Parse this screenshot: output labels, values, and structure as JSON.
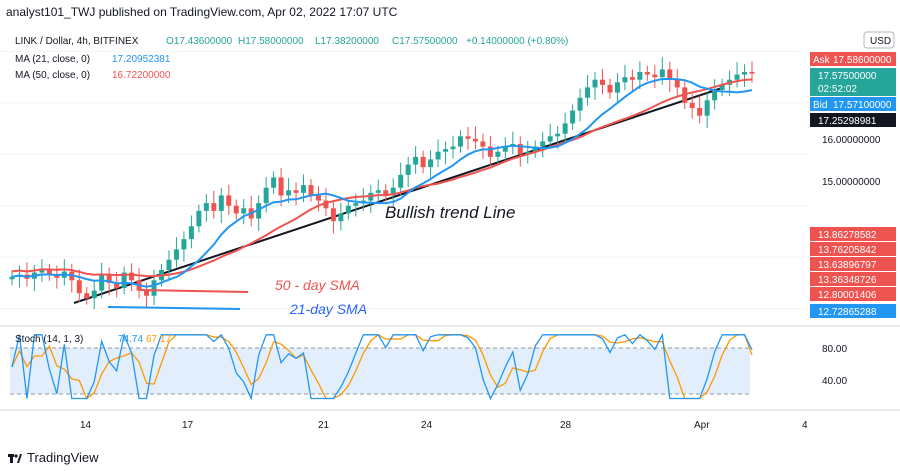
{
  "header": {
    "text": "analyst101_TWJ published on TradingView.com, Apr 02, 2022 17:07 UTC"
  },
  "footer": {
    "brand": "TradingView"
  },
  "legend": {
    "symbol": "LINK / Dollar, 4h, BITFINEX",
    "open": "O17.43600000",
    "high": "H17.58000000",
    "low": "L17.38200000",
    "close": "C17.57500000",
    "change": "+0.14000000 (+0.80%)",
    "ma21_label": "MA (21, close, 0)",
    "ma21_value": "17.20952381",
    "ma50_label": "MA (50, close, 0)",
    "ma50_value": "16.72200000"
  },
  "currency": "USD",
  "price_axis": {
    "ticks": [
      "16.00000000",
      "15.00000000"
    ],
    "ask_label": "Ask",
    "ask_value": "17.58600000",
    "last_value": "17.57500000",
    "countdown": "02:52:02",
    "bid_label": "Bid",
    "bid_value": "17.57100000",
    "ma21_tag": "17.25298981",
    "red_labels": [
      "13.86278582",
      "13.76205842",
      "13.63896797",
      "13.36348726",
      "12.80001406"
    ],
    "blue_label": "12.72865288"
  },
  "annotations": {
    "trend": "Bullish trend Line",
    "sma50": "50 - day SMA",
    "sma21": "21-day SMA"
  },
  "stoch": {
    "label": "Stoch (14, 1, 3)",
    "k_value": "74.74",
    "d_value": "67.17",
    "ticks": [
      "80.00",
      "40.00"
    ]
  },
  "x_axis": {
    "ticks": [
      "14",
      "17",
      "21",
      "24",
      "28",
      "Apr",
      "4"
    ]
  },
  "colors": {
    "up": "#26a69a",
    "down": "#ef5350",
    "ma21": "#2196f3",
    "ma50": "#ef5350",
    "trend": "#131722",
    "stoch_k": "#2196f3",
    "stoch_d": "#ff9800",
    "ask": "#ef5350",
    "bid": "#2196f3",
    "ma21_tag": "#131722",
    "band": "#e3eefc"
  },
  "chart_data": {
    "type": "line",
    "title": "LINK / Dollar, 4h, BITFINEX",
    "ylim": [
      12.7,
      18.3
    ],
    "price_close": [
      13.62,
      13.66,
      13.58,
      13.7,
      13.75,
      13.66,
      13.6,
      13.72,
      13.55,
      13.3,
      13.2,
      13.35,
      13.65,
      13.5,
      13.4,
      13.7,
      13.55,
      13.35,
      13.25,
      13.55,
      13.75,
      13.95,
      14.15,
      14.35,
      14.6,
      14.9,
      15.05,
      14.9,
      15.2,
      15.0,
      14.85,
      14.95,
      14.75,
      15.05,
      15.35,
      15.55,
      15.2,
      15.3,
      15.25,
      15.4,
      15.2,
      15.1,
      14.95,
      14.7,
      14.85,
      15.0,
      15.05,
      15.1,
      15.25,
      15.3,
      15.2,
      15.35,
      15.6,
      15.8,
      15.95,
      15.75,
      15.9,
      16.05,
      16.1,
      16.15,
      16.35,
      16.3,
      16.25,
      16.15,
      15.95,
      16.05,
      16.15,
      16.2,
      16.0,
      16.05,
      16.15,
      16.25,
      16.35,
      16.4,
      16.6,
      16.85,
      17.1,
      17.3,
      17.45,
      17.35,
      17.2,
      17.4,
      17.5,
      17.45,
      17.6,
      17.55,
      17.5,
      17.65,
      17.45,
      17.3,
      17.0,
      16.9,
      16.75,
      17.05,
      17.25,
      17.35,
      17.45,
      17.55,
      17.6,
      17.57
    ],
    "series": [
      {
        "name": "MA (21, close, 0)",
        "value": 17.20952381
      },
      {
        "name": "MA (50, close, 0)",
        "value": 16.722
      },
      {
        "name": "Stoch (14, 1, 3)",
        "k": 74.74,
        "d": 67.17
      }
    ]
  }
}
